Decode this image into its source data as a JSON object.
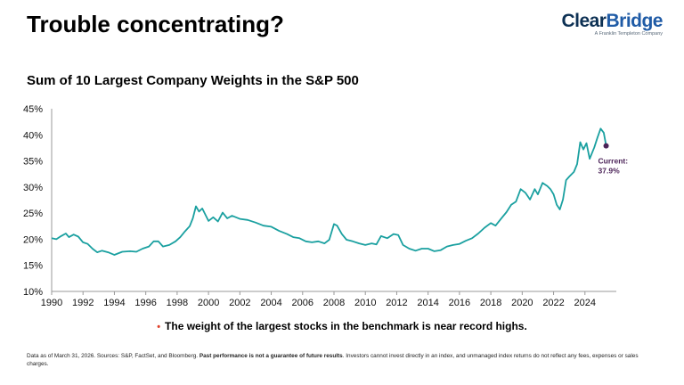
{
  "header": {
    "title": "Trouble concentrating?",
    "logo": {
      "word_part1": "Clear",
      "word_part2": "Bridge",
      "tagline": "A Franklin Templeton Company"
    }
  },
  "colors": {
    "line": "#1aa0a0",
    "current_marker": "#4b2358",
    "logo_dark": "#0d3154",
    "logo_accent": "#1f5ba6",
    "bullet": "#e0402a"
  },
  "chart_data": {
    "type": "line",
    "title": "Sum of 10 Largest Company Weights in the S&P 500",
    "xlabel": "",
    "ylabel": "",
    "xlim": [
      1990,
      2026
    ],
    "ylim": [
      10,
      45
    ],
    "x_ticks": [
      1990,
      1992,
      1994,
      1996,
      1998,
      2000,
      2002,
      2004,
      2006,
      2008,
      2010,
      2012,
      2014,
      2016,
      2018,
      2020,
      2022,
      2024
    ],
    "y_ticks": [
      10,
      15,
      20,
      25,
      30,
      35,
      40,
      45
    ],
    "y_tick_labels": [
      "10%",
      "15%",
      "20%",
      "25%",
      "30%",
      "35%",
      "40%",
      "45%"
    ],
    "grid": false,
    "series": [
      {
        "name": "",
        "points": [
          [
            1990.0,
            20.2
          ],
          [
            1990.3,
            20.0
          ],
          [
            1990.6,
            20.6
          ],
          [
            1990.9,
            21.1
          ],
          [
            1991.1,
            20.4
          ],
          [
            1991.4,
            20.9
          ],
          [
            1991.7,
            20.5
          ],
          [
            1992.0,
            19.4
          ],
          [
            1992.3,
            19.1
          ],
          [
            1992.6,
            18.2
          ],
          [
            1992.9,
            17.5
          ],
          [
            1993.2,
            17.8
          ],
          [
            1993.6,
            17.5
          ],
          [
            1994.0,
            17.0
          ],
          [
            1994.5,
            17.6
          ],
          [
            1995.0,
            17.7
          ],
          [
            1995.4,
            17.6
          ],
          [
            1995.8,
            18.2
          ],
          [
            1996.2,
            18.6
          ],
          [
            1996.5,
            19.6
          ],
          [
            1996.8,
            19.6
          ],
          [
            1997.1,
            18.6
          ],
          [
            1997.5,
            18.9
          ],
          [
            1997.9,
            19.6
          ],
          [
            1998.2,
            20.4
          ],
          [
            1998.5,
            21.5
          ],
          [
            1998.8,
            22.5
          ],
          [
            1999.0,
            24.0
          ],
          [
            1999.2,
            26.3
          ],
          [
            1999.4,
            25.3
          ],
          [
            1999.6,
            25.9
          ],
          [
            1999.8,
            24.7
          ],
          [
            2000.0,
            23.5
          ],
          [
            2000.3,
            24.2
          ],
          [
            2000.6,
            23.4
          ],
          [
            2000.9,
            25.1
          ],
          [
            2001.2,
            24.0
          ],
          [
            2001.5,
            24.5
          ],
          [
            2002.0,
            23.9
          ],
          [
            2002.5,
            23.7
          ],
          [
            2003.0,
            23.2
          ],
          [
            2003.5,
            22.6
          ],
          [
            2004.0,
            22.4
          ],
          [
            2004.5,
            21.6
          ],
          [
            2005.0,
            21.0
          ],
          [
            2005.4,
            20.4
          ],
          [
            2005.8,
            20.2
          ],
          [
            2006.2,
            19.6
          ],
          [
            2006.6,
            19.4
          ],
          [
            2007.0,
            19.6
          ],
          [
            2007.4,
            19.2
          ],
          [
            2007.7,
            19.9
          ],
          [
            2008.0,
            22.9
          ],
          [
            2008.2,
            22.6
          ],
          [
            2008.5,
            21.0
          ],
          [
            2008.8,
            19.9
          ],
          [
            2009.2,
            19.6
          ],
          [
            2009.6,
            19.2
          ],
          [
            2010.0,
            18.9
          ],
          [
            2010.4,
            19.2
          ],
          [
            2010.7,
            19.0
          ],
          [
            2011.0,
            20.6
          ],
          [
            2011.4,
            20.2
          ],
          [
            2011.8,
            21.0
          ],
          [
            2012.1,
            20.8
          ],
          [
            2012.4,
            18.9
          ],
          [
            2012.8,
            18.2
          ],
          [
            2013.2,
            17.8
          ],
          [
            2013.6,
            18.2
          ],
          [
            2014.0,
            18.2
          ],
          [
            2014.4,
            17.7
          ],
          [
            2014.8,
            17.9
          ],
          [
            2015.2,
            18.6
          ],
          [
            2015.6,
            18.9
          ],
          [
            2016.0,
            19.1
          ],
          [
            2016.4,
            19.7
          ],
          [
            2016.8,
            20.2
          ],
          [
            2017.2,
            21.1
          ],
          [
            2017.6,
            22.2
          ],
          [
            2018.0,
            23.1
          ],
          [
            2018.3,
            22.6
          ],
          [
            2018.7,
            24.1
          ],
          [
            2019.0,
            25.2
          ],
          [
            2019.3,
            26.6
          ],
          [
            2019.6,
            27.2
          ],
          [
            2019.9,
            29.6
          ],
          [
            2020.2,
            28.9
          ],
          [
            2020.5,
            27.6
          ],
          [
            2020.8,
            29.6
          ],
          [
            2021.0,
            28.6
          ],
          [
            2021.3,
            30.8
          ],
          [
            2021.6,
            30.2
          ],
          [
            2021.8,
            29.6
          ],
          [
            2022.0,
            28.6
          ],
          [
            2022.2,
            26.6
          ],
          [
            2022.4,
            25.7
          ],
          [
            2022.6,
            27.6
          ],
          [
            2022.8,
            31.3
          ],
          [
            2023.0,
            32.0
          ],
          [
            2023.3,
            32.9
          ],
          [
            2023.5,
            34.4
          ],
          [
            2023.7,
            38.6
          ],
          [
            2023.9,
            37.2
          ],
          [
            2024.1,
            38.4
          ],
          [
            2024.3,
            35.4
          ],
          [
            2024.6,
            37.6
          ],
          [
            2024.8,
            39.5
          ],
          [
            2025.0,
            41.2
          ],
          [
            2025.2,
            40.4
          ],
          [
            2025.35,
            37.9
          ]
        ]
      }
    ],
    "current": {
      "x": 2025.35,
      "y": 37.9,
      "label_line1": "Current:",
      "label_line2": "37.9%"
    }
  },
  "note": {
    "bullet": "•",
    "text": "The weight of the largest stocks in the benchmark is near record highs."
  },
  "footnote": {
    "part1": "Data as of March 31, 2026. Sources: S&P, FactSet, and Bloomberg. ",
    "bold": "Past performance is not a guarantee of future results",
    "part2": ". Investors cannot invest directly in an index, and unmanaged index returns do not reflect any fees, expenses or sales charges."
  }
}
